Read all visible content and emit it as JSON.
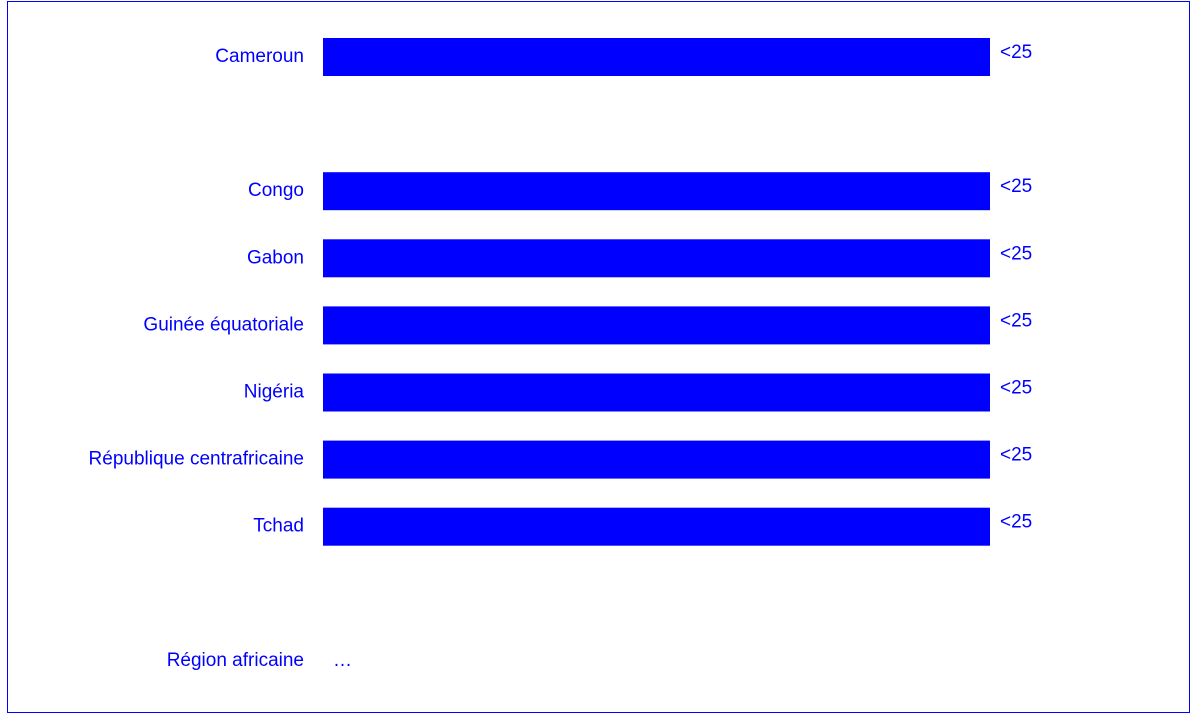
{
  "chart_data": {
    "type": "bar",
    "orientation": "horizontal",
    "title": "",
    "xlabel": "",
    "ylabel": "",
    "categories": [
      "Cameroun",
      "",
      "Congo",
      "Gabon",
      "Guinée équatoriale",
      "Nigéria",
      "République centrafricaine",
      "Tchad",
      "",
      "Région africaine"
    ],
    "values": [
      1,
      null,
      1,
      1,
      1,
      1,
      1,
      1,
      null,
      null
    ],
    "value_labels": [
      "<25",
      "",
      "<25",
      "<25",
      "<25",
      "<25",
      "<25",
      "<25",
      "",
      "…"
    ],
    "xlim": [
      0,
      1
    ],
    "grid": false,
    "legend": "none",
    "bar_color": "#0000ff",
    "text_color": "#0000ff"
  }
}
